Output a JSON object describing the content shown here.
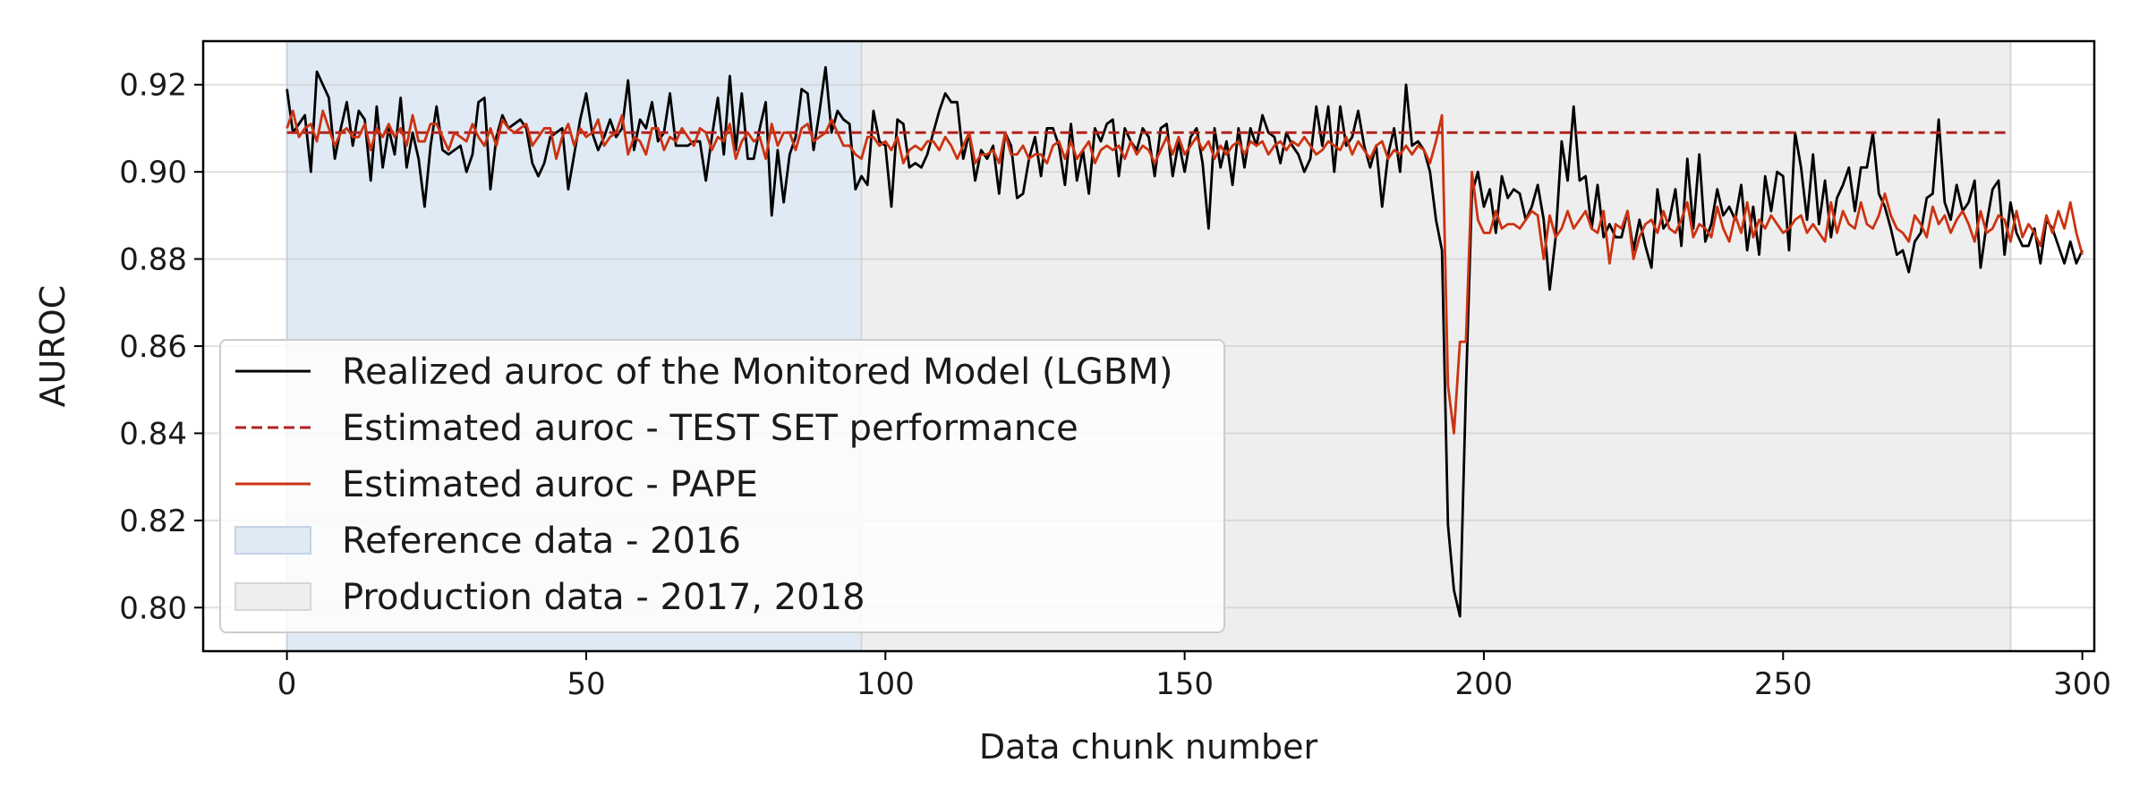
{
  "chart_data": {
    "type": "line",
    "xlabel": "Data chunk number",
    "ylabel": "AUROC",
    "xlim": [
      -14,
      302
    ],
    "ylim": [
      0.79,
      0.93
    ],
    "x_ticks": [
      0,
      50,
      100,
      150,
      200,
      250,
      300
    ],
    "y_ticks": [
      0.8,
      0.82,
      0.84,
      0.86,
      0.88,
      0.9,
      0.92
    ],
    "grid": "horizontal",
    "legend_position": "lower-left",
    "colors": {
      "realized": "#000000",
      "test_set": "#b22222",
      "pape": "#cc3311",
      "reference_band": "#dfeaf4",
      "production_band": "#eeeeee"
    },
    "bands": [
      {
        "name": "Reference data - 2016",
        "x_start": 0,
        "x_end": 96
      },
      {
        "name": "Production data - 2017, 2018",
        "x_start": 96,
        "x_end": 288
      }
    ],
    "series": [
      {
        "name": "Realized auroc of the Monitored Model (LGBM)",
        "style": "solid",
        "x_step": 1,
        "values": [
          0.919,
          0.909,
          0.911,
          0.913,
          0.9,
          0.923,
          0.92,
          0.917,
          0.903,
          0.91,
          0.916,
          0.906,
          0.914,
          0.912,
          0.898,
          0.915,
          0.901,
          0.91,
          0.904,
          0.917,
          0.901,
          0.909,
          0.903,
          0.892,
          0.906,
          0.915,
          0.905,
          0.904,
          0.905,
          0.906,
          0.9,
          0.904,
          0.916,
          0.917,
          0.896,
          0.908,
          0.913,
          0.91,
          0.911,
          0.912,
          0.91,
          0.902,
          0.899,
          0.902,
          0.908,
          0.909,
          0.91,
          0.896,
          0.904,
          0.912,
          0.918,
          0.909,
          0.905,
          0.908,
          0.912,
          0.908,
          0.91,
          0.921,
          0.905,
          0.912,
          0.91,
          0.916,
          0.907,
          0.909,
          0.918,
          0.906,
          0.906,
          0.906,
          0.907,
          0.907,
          0.898,
          0.908,
          0.917,
          0.904,
          0.922,
          0.905,
          0.918,
          0.903,
          0.903,
          0.91,
          0.916,
          0.89,
          0.905,
          0.893,
          0.904,
          0.908,
          0.919,
          0.918,
          0.905,
          0.914,
          0.924,
          0.909,
          0.914,
          0.912,
          0.911,
          0.896,
          0.899,
          0.897,
          0.914,
          0.907,
          0.906,
          0.892,
          0.912,
          0.911,
          0.901,
          0.902,
          0.901,
          0.904,
          0.909,
          0.914,
          0.918,
          0.916,
          0.916,
          0.903,
          0.909,
          0.898,
          0.905,
          0.903,
          0.906,
          0.895,
          0.909,
          0.906,
          0.894,
          0.895,
          0.903,
          0.908,
          0.899,
          0.91,
          0.91,
          0.906,
          0.897,
          0.911,
          0.898,
          0.905,
          0.895,
          0.91,
          0.907,
          0.911,
          0.912,
          0.899,
          0.91,
          0.907,
          0.905,
          0.91,
          0.908,
          0.899,
          0.91,
          0.911,
          0.899,
          0.907,
          0.9,
          0.908,
          0.91,
          0.902,
          0.887,
          0.91,
          0.901,
          0.907,
          0.897,
          0.91,
          0.901,
          0.91,
          0.906,
          0.913,
          0.909,
          0.908,
          0.902,
          0.909,
          0.906,
          0.904,
          0.9,
          0.903,
          0.915,
          0.906,
          0.915,
          0.9,
          0.915,
          0.906,
          0.908,
          0.914,
          0.906,
          0.901,
          0.906,
          0.892,
          0.904,
          0.91,
          0.9,
          0.92,
          0.906,
          0.907,
          0.905,
          0.9,
          0.889,
          0.882,
          0.819,
          0.804,
          0.798,
          0.85,
          0.895,
          0.9,
          0.892,
          0.896,
          0.886,
          0.899,
          0.894,
          0.896,
          0.895,
          0.889,
          0.892,
          0.897,
          0.889,
          0.873,
          0.885,
          0.907,
          0.898,
          0.915,
          0.898,
          0.899,
          0.887,
          0.897,
          0.885,
          0.888,
          0.885,
          0.885,
          0.891,
          0.882,
          0.889,
          0.883,
          0.878,
          0.896,
          0.887,
          0.889,
          0.896,
          0.883,
          0.903,
          0.887,
          0.904,
          0.884,
          0.888,
          0.896,
          0.89,
          0.892,
          0.889,
          0.897,
          0.882,
          0.892,
          0.881,
          0.899,
          0.891,
          0.9,
          0.899,
          0.882,
          0.909,
          0.901,
          0.889,
          0.904,
          0.888,
          0.898,
          0.885,
          0.894,
          0.897,
          0.901,
          0.891,
          0.901,
          0.901,
          0.909,
          0.895,
          0.892,
          0.887,
          0.881,
          0.882,
          0.877,
          0.884,
          0.886,
          0.894,
          0.895,
          0.912,
          0.893,
          0.889,
          0.897,
          0.891,
          0.893,
          0.898,
          0.878,
          0.888,
          0.896,
          0.898,
          0.881,
          0.893,
          0.886,
          0.883,
          0.883,
          0.887,
          0.879,
          0.889,
          0.887,
          0.883,
          0.879,
          0.884,
          0.879,
          0.882
        ]
      },
      {
        "name": "Estimated auroc - TEST SET performance",
        "style": "dashed",
        "x": [
          0,
          288
        ],
        "values": [
          0.909,
          0.909
        ]
      },
      {
        "name": "Estimated auroc - PAPE",
        "style": "solid",
        "x_step": 1,
        "values": [
          0.91,
          0.914,
          0.908,
          0.91,
          0.911,
          0.907,
          0.914,
          0.91,
          0.906,
          0.909,
          0.91,
          0.908,
          0.908,
          0.911,
          0.905,
          0.91,
          0.908,
          0.911,
          0.908,
          0.91,
          0.906,
          0.913,
          0.907,
          0.907,
          0.911,
          0.911,
          0.908,
          0.905,
          0.909,
          0.908,
          0.907,
          0.911,
          0.908,
          0.906,
          0.91,
          0.906,
          0.912,
          0.91,
          0.909,
          0.91,
          0.911,
          0.906,
          0.908,
          0.91,
          0.91,
          0.903,
          0.908,
          0.911,
          0.906,
          0.91,
          0.908,
          0.909,
          0.912,
          0.906,
          0.908,
          0.909,
          0.913,
          0.904,
          0.908,
          0.907,
          0.904,
          0.91,
          0.91,
          0.905,
          0.908,
          0.907,
          0.91,
          0.908,
          0.906,
          0.91,
          0.909,
          0.905,
          0.908,
          0.907,
          0.911,
          0.903,
          0.907,
          0.909,
          0.907,
          0.908,
          0.903,
          0.911,
          0.906,
          0.909,
          0.909,
          0.905,
          0.91,
          0.911,
          0.907,
          0.908,
          0.909,
          0.912,
          0.909,
          0.906,
          0.906,
          0.904,
          0.903,
          0.908,
          0.908,
          0.906,
          0.907,
          0.905,
          0.908,
          0.902,
          0.905,
          0.906,
          0.905,
          0.907,
          0.907,
          0.905,
          0.908,
          0.906,
          0.903,
          0.906,
          0.909,
          0.902,
          0.904,
          0.904,
          0.905,
          0.902,
          0.909,
          0.904,
          0.904,
          0.906,
          0.903,
          0.904,
          0.904,
          0.902,
          0.906,
          0.907,
          0.903,
          0.907,
          0.903,
          0.905,
          0.907,
          0.902,
          0.905,
          0.906,
          0.905,
          0.906,
          0.903,
          0.907,
          0.904,
          0.906,
          0.905,
          0.902,
          0.905,
          0.908,
          0.904,
          0.908,
          0.904,
          0.906,
          0.908,
          0.905,
          0.907,
          0.903,
          0.906,
          0.904,
          0.906,
          0.907,
          0.904,
          0.907,
          0.906,
          0.907,
          0.904,
          0.906,
          0.907,
          0.905,
          0.907,
          0.906,
          0.908,
          0.906,
          0.904,
          0.905,
          0.907,
          0.906,
          0.905,
          0.908,
          0.904,
          0.907,
          0.905,
          0.903,
          0.906,
          0.907,
          0.903,
          0.905,
          0.904,
          0.906,
          0.904,
          0.906,
          0.905,
          0.902,
          0.907,
          0.913,
          0.851,
          0.84,
          0.861,
          0.861,
          0.9,
          0.889,
          0.886,
          0.886,
          0.891,
          0.887,
          0.888,
          0.888,
          0.887,
          0.889,
          0.891,
          0.89,
          0.88,
          0.89,
          0.885,
          0.887,
          0.891,
          0.887,
          0.889,
          0.891,
          0.887,
          0.886,
          0.891,
          0.879,
          0.888,
          0.887,
          0.891,
          0.88,
          0.885,
          0.888,
          0.889,
          0.886,
          0.891,
          0.887,
          0.886,
          0.889,
          0.893,
          0.885,
          0.888,
          0.887,
          0.885,
          0.892,
          0.887,
          0.884,
          0.89,
          0.886,
          0.893,
          0.885,
          0.889,
          0.887,
          0.89,
          0.888,
          0.886,
          0.887,
          0.889,
          0.89,
          0.886,
          0.888,
          0.886,
          0.884,
          0.893,
          0.886,
          0.891,
          0.888,
          0.887,
          0.893,
          0.888,
          0.887,
          0.89,
          0.895,
          0.89,
          0.887,
          0.886,
          0.884,
          0.89,
          0.888,
          0.885,
          0.892,
          0.888,
          0.89,
          0.886,
          0.889,
          0.891,
          0.888,
          0.884,
          0.891,
          0.886,
          0.887,
          0.89,
          0.889,
          0.884,
          0.891,
          0.885,
          0.888,
          0.886,
          0.883,
          0.89,
          0.886,
          0.891,
          0.887,
          0.893,
          0.886,
          0.881
        ]
      }
    ]
  }
}
